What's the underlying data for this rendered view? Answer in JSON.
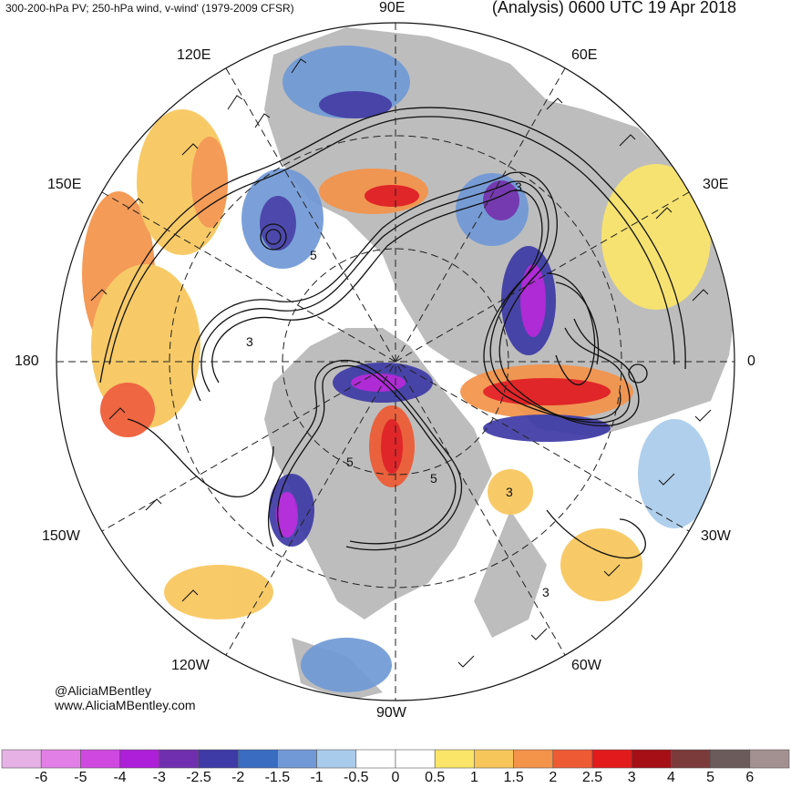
{
  "header": {
    "left_title": "300-200-hPa PV; 250-hPa wind, v-wind' (1979-2009 CFSR)",
    "right_title": "(Analysis) 0600 UTC 19 Apr 2018"
  },
  "longitude_labels": {
    "deg90e": "90E",
    "deg60e": "60E",
    "deg30e": "30E",
    "deg0": "0",
    "deg30w": "30W",
    "deg60w": "60W",
    "deg90w": "90W",
    "deg120w": "120W",
    "deg150w": "150W",
    "deg180": "180",
    "deg150e": "150E",
    "deg120e": "120E"
  },
  "contour_labels": [
    "5",
    "3",
    "3",
    "5",
    "5",
    "3",
    "3"
  ],
  "credits": {
    "twitter": "@AliciaMBentley",
    "website": "www.AliciaMBentley.com"
  },
  "colorbar": {
    "ticks": [
      "-6",
      "-5",
      "-4",
      "-3",
      "-2.5",
      "-2",
      "-1.5",
      "-1",
      "-0.5",
      "0",
      "0.5",
      "1",
      "1.5",
      "2",
      "2.5",
      "3",
      "4",
      "5",
      "6"
    ],
    "colors": [
      "#e6b2e6",
      "#e27fe6",
      "#cf48e0",
      "#ad1fd8",
      "#6f2fae",
      "#3e3aa6",
      "#3a6cc2",
      "#7099d6",
      "#a9cbeb",
      "#ffffff",
      "#ffffff",
      "#fbe569",
      "#f7c65b",
      "#f4934a",
      "#ee5a33",
      "#e31a1c",
      "#a50f15",
      "#7b3b3b",
      "#6b5b5b",
      "#a39191"
    ]
  },
  "colors": {
    "land": "#b8b8b8",
    "ocean": "#ffffff",
    "contour": "#111111"
  }
}
